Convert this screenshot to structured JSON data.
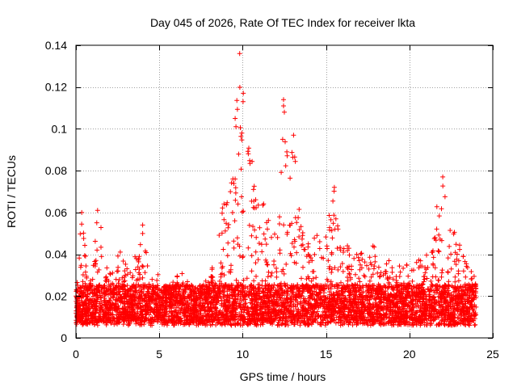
{
  "chart_data": {
    "type": "scatter",
    "title": "Day 045 of 2026, Rate Of TEC Index for receiver lkta",
    "xlabel": "GPS time / hours",
    "ylabel": "ROTI / TECUs",
    "xlim": [
      0,
      25
    ],
    "ylim": [
      0,
      0.14
    ],
    "xticks": [
      0,
      5,
      10,
      15,
      20,
      25
    ],
    "xtick_labels": [
      "0",
      "5",
      "10",
      "15",
      "20",
      "25"
    ],
    "yticks": [
      0,
      0.02,
      0.04,
      0.06,
      0.08,
      0.1,
      0.12,
      0.14
    ],
    "ytick_labels": [
      "0",
      "0.02",
      "0.04",
      "0.06",
      "0.08",
      "0.1",
      "0.12",
      "0.14"
    ],
    "grid": true,
    "marker": "+",
    "color": "#ff0000",
    "series": [
      {
        "name": "ROTI",
        "x_range": [
          0,
          24
        ],
        "base_level": 0.015,
        "envelope": [
          {
            "x": 0.0,
            "max": 0.024
          },
          {
            "x": 0.3,
            "max": 0.06
          },
          {
            "x": 0.8,
            "max": 0.03
          },
          {
            "x": 1.3,
            "max": 0.061
          },
          {
            "x": 1.7,
            "max": 0.045
          },
          {
            "x": 2.0,
            "max": 0.03
          },
          {
            "x": 2.6,
            "max": 0.048
          },
          {
            "x": 3.2,
            "max": 0.03
          },
          {
            "x": 4.0,
            "max": 0.054
          },
          {
            "x": 4.5,
            "max": 0.035
          },
          {
            "x": 5.5,
            "max": 0.025
          },
          {
            "x": 6.5,
            "max": 0.033
          },
          {
            "x": 7.0,
            "max": 0.02
          },
          {
            "x": 8.0,
            "max": 0.03
          },
          {
            "x": 8.5,
            "max": 0.045
          },
          {
            "x": 9.0,
            "max": 0.075
          },
          {
            "x": 9.5,
            "max": 0.105
          },
          {
            "x": 9.8,
            "max": 0.136
          },
          {
            "x": 10.3,
            "max": 0.098
          },
          {
            "x": 11.0,
            "max": 0.075
          },
          {
            "x": 11.5,
            "max": 0.06
          },
          {
            "x": 12.0,
            "max": 0.048
          },
          {
            "x": 12.5,
            "max": 0.114
          },
          {
            "x": 13.0,
            "max": 0.097
          },
          {
            "x": 13.5,
            "max": 0.06
          },
          {
            "x": 14.0,
            "max": 0.045
          },
          {
            "x": 15.0,
            "max": 0.055
          },
          {
            "x": 15.5,
            "max": 0.072
          },
          {
            "x": 16.0,
            "max": 0.05
          },
          {
            "x": 17.0,
            "max": 0.04
          },
          {
            "x": 18.0,
            "max": 0.045
          },
          {
            "x": 19.0,
            "max": 0.035
          },
          {
            "x": 20.0,
            "max": 0.035
          },
          {
            "x": 21.0,
            "max": 0.04
          },
          {
            "x": 21.5,
            "max": 0.06
          },
          {
            "x": 22.0,
            "max": 0.077
          },
          {
            "x": 22.5,
            "max": 0.055
          },
          {
            "x": 23.0,
            "max": 0.045
          },
          {
            "x": 23.5,
            "max": 0.035
          },
          {
            "x": 24.0,
            "max": 0.03
          }
        ],
        "peaks": [
          {
            "x": 9.82,
            "y": 0.136
          },
          {
            "x": 9.55,
            "y": 0.105
          },
          {
            "x": 9.6,
            "y": 0.101
          },
          {
            "x": 9.95,
            "y": 0.098
          },
          {
            "x": 12.45,
            "y": 0.114
          },
          {
            "x": 12.45,
            "y": 0.111
          },
          {
            "x": 12.5,
            "y": 0.108
          },
          {
            "x": 12.4,
            "y": 0.095
          },
          {
            "x": 13.05,
            "y": 0.097
          },
          {
            "x": 15.5,
            "y": 0.072
          },
          {
            "x": 22.0,
            "y": 0.077
          },
          {
            "x": 1.3,
            "y": 0.061
          },
          {
            "x": 0.35,
            "y": 0.06
          },
          {
            "x": 4.0,
            "y": 0.054
          }
        ]
      }
    ]
  }
}
